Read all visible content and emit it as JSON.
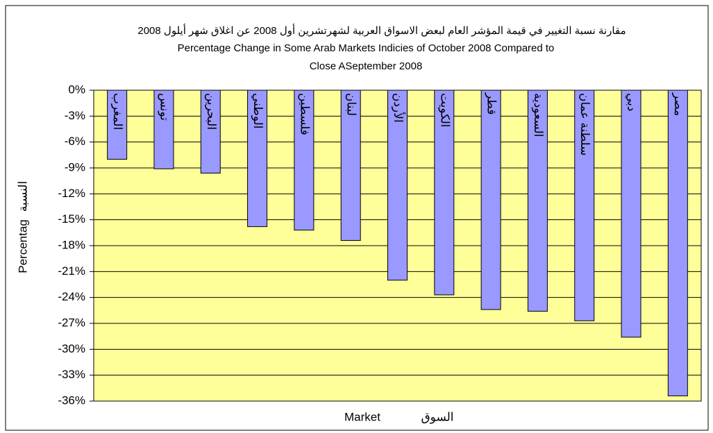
{
  "chart_data": {
    "type": "bar",
    "title": [
      "مقارنة نسبة التغيير في قيمة المؤشر العام لبعض الاسواق العربية لشهرتشرين أول 2008  عن اغلاق شهر أيلول  2008",
      "Percentage Change in Some Arab Markets Indicies of October 2008  Compared to",
      "Close  ASeptember 2008"
    ],
    "ylabel": [
      "Percentag",
      "النسبة"
    ],
    "xlabel": [
      "Market",
      "السوق"
    ],
    "categories": [
      "المغرب",
      "تونس",
      "البحرين",
      "الوطني",
      "فلسطين",
      "لبنان",
      "الأردن",
      "الكويت",
      "قطر",
      "السعودية",
      "سلطنة عمان",
      "دبي",
      "مصر"
    ],
    "values": [
      -8.0,
      -9.1,
      -9.6,
      -15.8,
      -16.2,
      -17.4,
      -22.0,
      -23.7,
      -25.4,
      -25.6,
      -26.7,
      -28.6,
      -35.4
    ],
    "color": "#9999ff",
    "plot_background": "#ffff99",
    "ylim": [
      -36,
      0
    ],
    "yticks": [
      {
        "value": 0,
        "label": "0%"
      },
      {
        "value": -3,
        "label": "-3%"
      },
      {
        "value": -6,
        "label": "-6%"
      },
      {
        "value": -9,
        "label": "-9%"
      },
      {
        "value": -12,
        "label": "-12%"
      },
      {
        "value": -15,
        "label": "-15%"
      },
      {
        "value": -18,
        "label": "-18%"
      },
      {
        "value": -21,
        "label": "-21%"
      },
      {
        "value": -24,
        "label": "-24%"
      },
      {
        "value": -27,
        "label": "-27%"
      },
      {
        "value": -30,
        "label": "-30%"
      },
      {
        "value": -33,
        "label": "-33%"
      },
      {
        "value": -36,
        "label": "-36%"
      }
    ],
    "grid": true
  }
}
